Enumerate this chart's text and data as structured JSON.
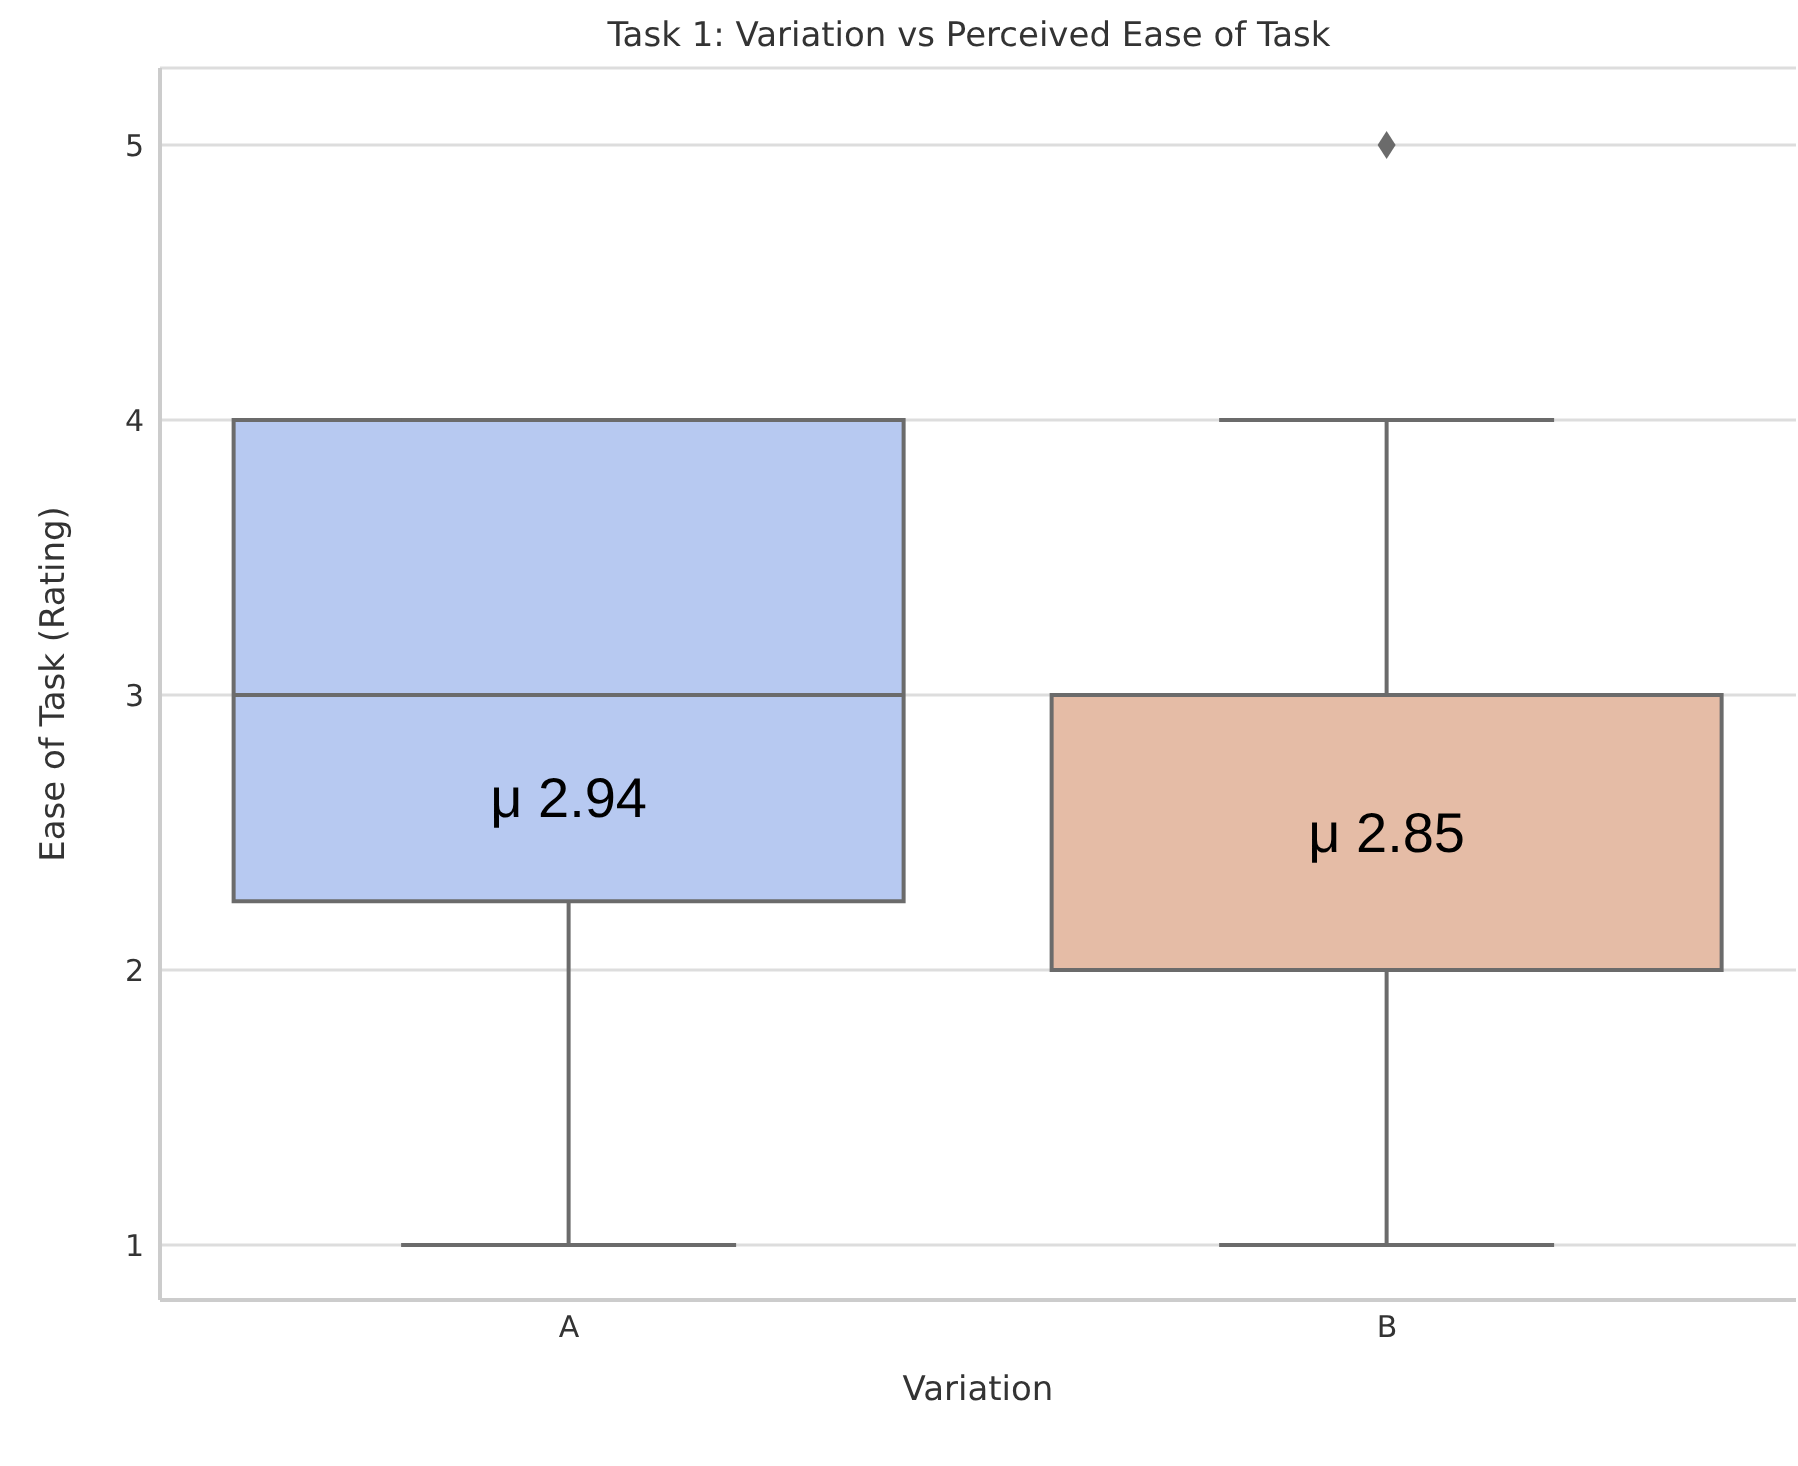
{
  "chart_data": {
    "type": "box",
    "title": "Task 1: Variation vs Perceived Ease of Task",
    "xlabel": "Variation",
    "ylabel": "Ease of Task (Rating)",
    "categories": [
      "A",
      "B"
    ],
    "colors": [
      "#b7c9f1",
      "#e5bca6"
    ],
    "boxes": [
      {
        "low": 1,
        "q1": 2.25,
        "median": 3,
        "q3": 4,
        "high": 4
      },
      {
        "low": 1,
        "q1": 2,
        "median": 3,
        "q3": 3,
        "high": 4,
        "outliers": [
          5
        ]
      }
    ],
    "annotations": [
      "μ 2.94",
      "μ 2.85"
    ],
    "ylim": [
      0.8,
      5.28
    ],
    "yticks": [
      1,
      2,
      3,
      4,
      5
    ],
    "grid": "y"
  }
}
